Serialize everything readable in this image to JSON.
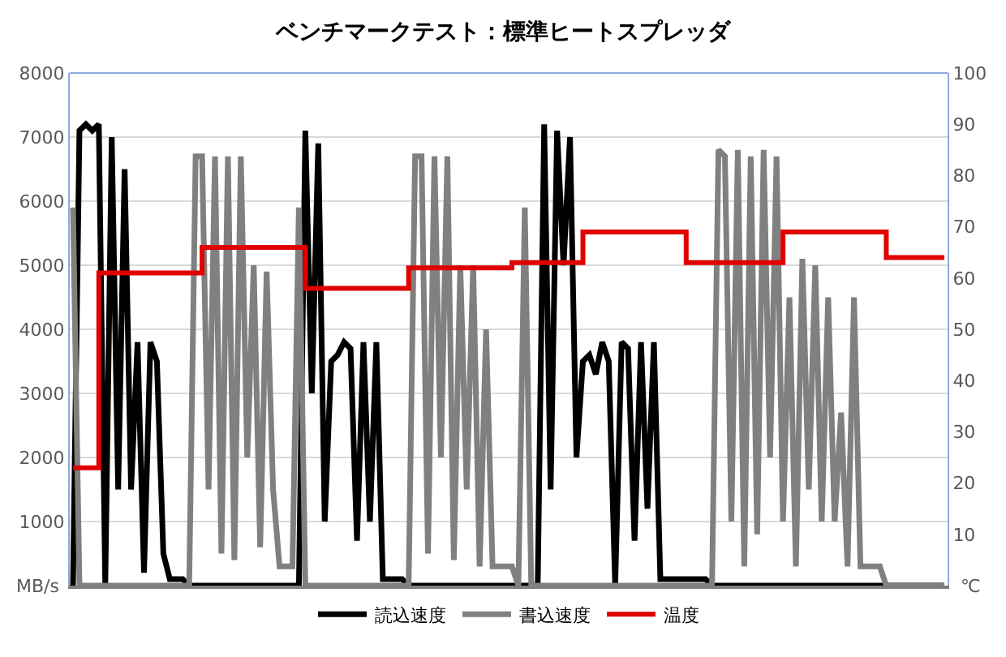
{
  "chart_data": {
    "type": "line",
    "title": "ベンチマークテスト：標準ヒートスプレッダ",
    "ylabel": "MB/s",
    "y2label": "℃",
    "categories": [
      null,
      null,
      null,
      null,
      null,
      null,
      null,
      null,
      null,
      null,
      null,
      null,
      null,
      null,
      null,
      null,
      null,
      null,
      null,
      null,
      null,
      null,
      null,
      null,
      null,
      null,
      null,
      null,
      null,
      null,
      null,
      null,
      null,
      null,
      null,
      null,
      null,
      null,
      null,
      null,
      null,
      null,
      null,
      null,
      null,
      null,
      null,
      null,
      null,
      null,
      null,
      null,
      null,
      null,
      null,
      null,
      null,
      null,
      null,
      null,
      null,
      null,
      null,
      null,
      null,
      null,
      null,
      null,
      null,
      null,
      null,
      null,
      null,
      null,
      null,
      null,
      null,
      null,
      null,
      null,
      null,
      null,
      null,
      null,
      null,
      null,
      null,
      null,
      null,
      null,
      null,
      null,
      null,
      null,
      null,
      null,
      null,
      null,
      null,
      null,
      null,
      null,
      null,
      null,
      null,
      null,
      null,
      null,
      null,
      null,
      null,
      null,
      null,
      null,
      null,
      null,
      null,
      null,
      null,
      null,
      null,
      null,
      null,
      null,
      null,
      null,
      null,
      null,
      null,
      null,
      null,
      null,
      null,
      null,
      null,
      null
    ],
    "series": [
      {
        "name": "読込速度",
        "color": "#000000",
        "values": [
          0,
          7100,
          7200,
          7100,
          7200,
          0,
          7000,
          1500,
          6500,
          1500,
          3800,
          200,
          3800,
          3500,
          500,
          100,
          100,
          100,
          0,
          0,
          0,
          0,
          0,
          0,
          0,
          0,
          0,
          0,
          0,
          0,
          0,
          0,
          0,
          0,
          0,
          0,
          7100,
          3000,
          6900,
          1000,
          3500,
          3600,
          3800,
          3700,
          700,
          3800,
          1000,
          3800,
          100,
          100,
          100,
          100,
          0,
          0,
          0,
          0,
          0,
          0,
          0,
          0,
          0,
          0,
          0,
          0,
          0,
          0,
          0,
          0,
          0,
          0,
          0,
          0,
          0,
          7200,
          1500,
          7100,
          5000,
          7000,
          2000,
          3500,
          3600,
          3300,
          3800,
          3500,
          0,
          3800,
          3700,
          700,
          3800,
          1200,
          3800,
          100,
          100,
          100,
          100,
          100,
          100,
          100,
          100,
          0,
          0,
          0,
          0,
          0,
          0,
          0,
          0,
          0,
          0,
          0,
          0,
          0,
          0,
          0,
          0,
          0,
          0,
          0,
          0,
          0,
          0,
          0,
          0,
          0,
          0,
          0,
          0,
          0,
          0,
          0,
          0,
          0,
          0,
          0,
          0,
          0
        ]
      },
      {
        "name": "書込速度",
        "color": "#808080",
        "values": [
          5900,
          0,
          0,
          0,
          0,
          0,
          0,
          0,
          0,
          0,
          0,
          0,
          0,
          0,
          0,
          0,
          0,
          0,
          0,
          6700,
          6700,
          1500,
          6700,
          500,
          6700,
          400,
          6700,
          2000,
          5000,
          600,
          4900,
          1500,
          300,
          300,
          300,
          5900,
          0,
          0,
          0,
          0,
          0,
          0,
          0,
          0,
          0,
          0,
          0,
          0,
          0,
          0,
          0,
          0,
          0,
          6700,
          6700,
          500,
          6700,
          2000,
          6700,
          400,
          5000,
          1500,
          5000,
          300,
          4000,
          300,
          300,
          300,
          300,
          0,
          5900,
          0,
          0,
          0,
          0,
          0,
          0,
          0,
          0,
          0,
          0,
          0,
          0,
          0,
          0,
          0,
          0,
          0,
          0,
          0,
          0,
          0,
          0,
          0,
          0,
          0,
          0,
          0,
          0,
          0,
          6800,
          6700,
          1000,
          6800,
          300,
          6700,
          800,
          6800,
          2000,
          6700,
          1000,
          4500,
          300,
          5100,
          1500,
          5000,
          1000,
          4500,
          1000,
          2700,
          300,
          4500,
          300,
          300,
          300,
          300,
          0,
          0,
          0,
          0,
          0,
          0,
          0,
          0,
          0,
          0
        ]
      },
      {
        "name": "温度",
        "color": "#e00000",
        "type": "step",
        "axis": "y2",
        "values": [
          23,
          23,
          23,
          23,
          61,
          61,
          61,
          61,
          61,
          61,
          61,
          61,
          61,
          61,
          61,
          61,
          61,
          61,
          61,
          61,
          66,
          66,
          66,
          66,
          66,
          66,
          66,
          66,
          66,
          66,
          66,
          66,
          66,
          66,
          66,
          66,
          58,
          58,
          58,
          58,
          58,
          58,
          58,
          58,
          58,
          58,
          58,
          58,
          58,
          58,
          58,
          58,
          62,
          62,
          62,
          62,
          62,
          62,
          62,
          62,
          62,
          62,
          62,
          62,
          62,
          62,
          62,
          62,
          63,
          63,
          63,
          63,
          63,
          63,
          63,
          63,
          63,
          63,
          63,
          69,
          69,
          69,
          69,
          69,
          69,
          69,
          69,
          69,
          69,
          69,
          69,
          69,
          69,
          69,
          69,
          63,
          63,
          63,
          63,
          63,
          63,
          63,
          63,
          63,
          63,
          63,
          63,
          63,
          63,
          63,
          69,
          69,
          69,
          69,
          69,
          69,
          69,
          69,
          69,
          69,
          69,
          69,
          69,
          69,
          69,
          69,
          64,
          64,
          64,
          64,
          64,
          64,
          64,
          64,
          64,
          64
        ]
      }
    ],
    "ylim": [
      0,
      8000
    ],
    "yticks": [
      {
        "value": 0,
        "label": null
      },
      1000,
      2000,
      3000,
      4000,
      5000,
      6000,
      7000,
      8000
    ],
    "y2lim": [
      0,
      100
    ],
    "y2ticks": [
      10,
      20,
      30,
      40,
      50,
      60,
      70,
      80,
      90,
      100
    ],
    "grid": "y",
    "legend": "bottom",
    "tick_labels": "y"
  }
}
